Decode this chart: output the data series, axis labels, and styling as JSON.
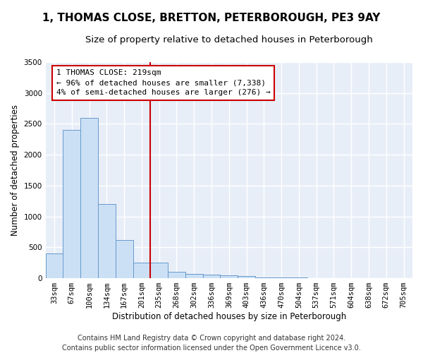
{
  "title": "1, THOMAS CLOSE, BRETTON, PETERBOROUGH, PE3 9AY",
  "subtitle": "Size of property relative to detached houses in Peterborough",
  "xlabel": "Distribution of detached houses by size in Peterborough",
  "ylabel": "Number of detached properties",
  "footer_line1": "Contains HM Land Registry data © Crown copyright and database right 2024.",
  "footer_line2": "Contains public sector information licensed under the Open Government Licence v3.0.",
  "annotation_line1": "1 THOMAS CLOSE: 219sqm",
  "annotation_line2": "← 96% of detached houses are smaller (7,338)",
  "annotation_line3": "4% of semi-detached houses are larger (276) →",
  "bar_color": "#cce0f5",
  "bar_edgecolor": "#6699cc",
  "vline_color": "#cc0000",
  "annotation_box_edgecolor": "#cc0000",
  "annotation_box_facecolor": "#ffffff",
  "categories": [
    "33sqm",
    "67sqm",
    "100sqm",
    "134sqm",
    "167sqm",
    "201sqm",
    "235sqm",
    "268sqm",
    "302sqm",
    "336sqm",
    "369sqm",
    "403sqm",
    "436sqm",
    "470sqm",
    "504sqm",
    "537sqm",
    "571sqm",
    "604sqm",
    "638sqm",
    "672sqm",
    "705sqm"
  ],
  "values": [
    400,
    2400,
    2600,
    1200,
    620,
    250,
    250,
    100,
    70,
    55,
    45,
    30,
    15,
    10,
    8,
    5,
    4,
    3,
    2,
    2,
    1
  ],
  "ylim": [
    0,
    3500
  ],
  "yticks": [
    0,
    500,
    1000,
    1500,
    2000,
    2500,
    3000,
    3500
  ],
  "background_color": "#e8eef8",
  "grid_color": "#ffffff",
  "title_fontsize": 11,
  "subtitle_fontsize": 9.5,
  "axis_label_fontsize": 8.5,
  "tick_fontsize": 7.5,
  "annotation_fontsize": 8,
  "footer_fontsize": 7
}
